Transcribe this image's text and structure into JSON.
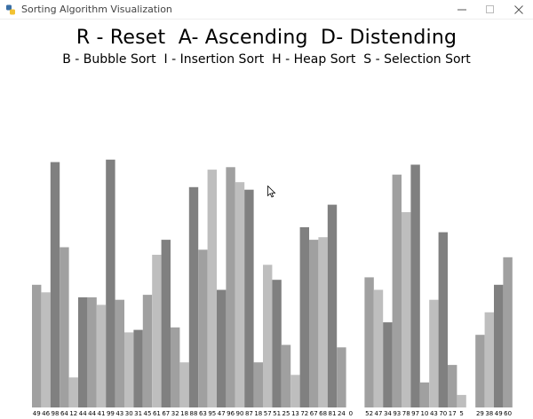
{
  "window": {
    "title": "Sorting Algorithm Visualization",
    "minimize_icon": "minimize-icon",
    "maximize_icon": "maximize-icon",
    "close_icon": "close-icon"
  },
  "header": {
    "line1": "R - Reset  A- Ascending  D- Distending",
    "line2": "B - Bubble Sort  I - Insertion Sort  H - Heap Sort  S - Selection Sort"
  },
  "colors": {
    "bar_shades": [
      "#a0a0a0",
      "#bebebe",
      "#808080"
    ],
    "label": "#000000"
  },
  "chart_data": {
    "type": "bar",
    "values": [
      49,
      46,
      98,
      64,
      12,
      44,
      44,
      41,
      99,
      43,
      30,
      31,
      45,
      61,
      67,
      32,
      18,
      88,
      63,
      95,
      47,
      96,
      90,
      87,
      18,
      57,
      51,
      25,
      13,
      72,
      67,
      68,
      81,
      24,
      0,
      0,
      52,
      47,
      34,
      93,
      78,
      97,
      10,
      43,
      70,
      17,
      5,
      0,
      29,
      38,
      49,
      60
    ],
    "labels": [
      "49",
      "46",
      "98",
      "64",
      "12",
      "44",
      "44",
      "41",
      "99",
      "43",
      "30",
      "31",
      "45",
      "61",
      "67",
      "32",
      "18",
      "88",
      "63",
      "95",
      "47",
      "96",
      "90",
      "87",
      "18",
      "57",
      "51",
      "25",
      "13",
      "72",
      "67",
      "68",
      "81",
      "24",
      "0",
      "",
      "52",
      "47",
      "34",
      "93",
      "78",
      "97",
      "10",
      "43",
      "70",
      "17",
      "5",
      "",
      "29",
      "38",
      "49",
      "60"
    ],
    "ylim": [
      0,
      100
    ]
  }
}
